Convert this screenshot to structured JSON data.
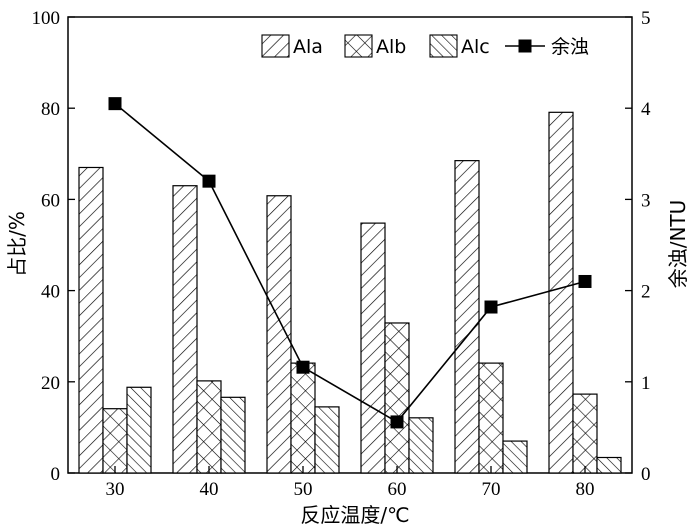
{
  "chart_data": {
    "type": "bar",
    "categories": [
      "30",
      "40",
      "50",
      "60",
      "70",
      "80"
    ],
    "series": [
      {
        "name": "Ala",
        "values": [
          67.0,
          63.0,
          60.8,
          54.8,
          68.5,
          79.1
        ],
        "axis": "left",
        "pattern": "diagonal-right"
      },
      {
        "name": "Alb",
        "values": [
          14.1,
          20.2,
          24.1,
          32.9,
          24.1,
          17.3
        ],
        "axis": "left",
        "pattern": "crosshatch"
      },
      {
        "name": "Alc",
        "values": [
          18.8,
          16.6,
          14.5,
          12.1,
          7.0,
          3.4
        ],
        "axis": "left",
        "pattern": "diagonal-left"
      },
      {
        "name": "余浊",
        "type": "line",
        "values": [
          4.05,
          3.2,
          1.16,
          0.56,
          1.82,
          2.1
        ],
        "axis": "right",
        "marker": "square"
      }
    ],
    "xlabel": "反应温度/℃",
    "ylabel": "占比/%",
    "y2label": "余浊/NTU",
    "ylim": [
      0,
      100
    ],
    "y2lim": [
      0,
      5
    ],
    "yticks": [
      "0",
      "20",
      "40",
      "60",
      "80",
      "100"
    ],
    "y2ticks": [
      "0",
      "1",
      "2",
      "3",
      "4",
      "5"
    ],
    "legend_position": "top"
  }
}
